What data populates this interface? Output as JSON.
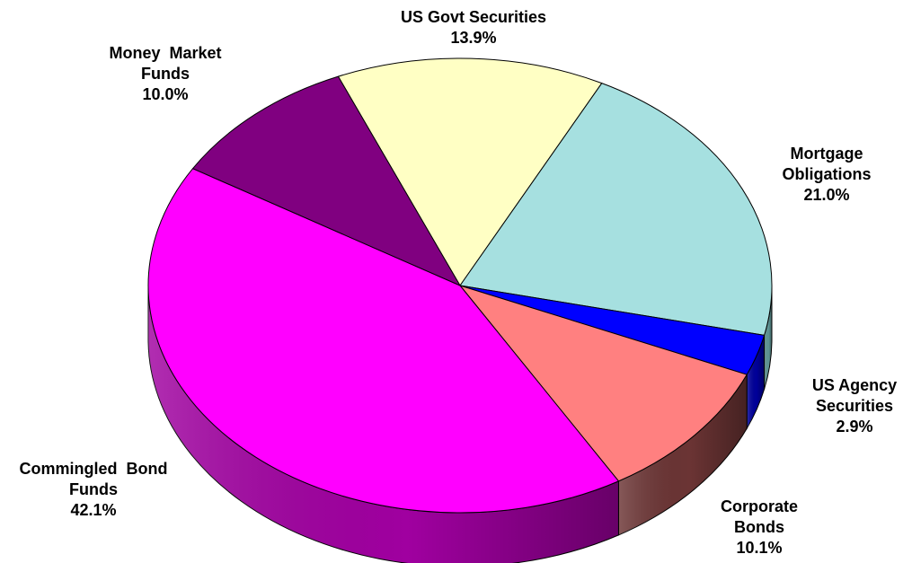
{
  "chart_data": {
    "type": "pie",
    "title": "",
    "slices": [
      {
        "label_lines": [
          "US Govt Securities"
        ],
        "pct_label": "13.9%",
        "value": 13.9,
        "top_color": "#ffffc4",
        "side_color": "#c8c89a"
      },
      {
        "label_lines": [
          "Mortgage",
          "Obligations"
        ],
        "pct_label": "21.0%",
        "value": 21.0,
        "top_color": "#a6e0e0",
        "side_color": "#5f9595"
      },
      {
        "label_lines": [
          "US Agency",
          "Securities"
        ],
        "pct_label": "2.9%",
        "value": 2.9,
        "top_color": "#0000ff",
        "side_color": "#00009a"
      },
      {
        "label_lines": [
          "Corporate",
          "Bonds"
        ],
        "pct_label": "10.1%",
        "value": 10.1,
        "top_color": "#ff8080",
        "side_color": "#6b3434"
      },
      {
        "label_lines": [
          "Commingled  Bond",
          "Funds"
        ],
        "pct_label": "42.1%",
        "value": 42.1,
        "top_color": "#ff00ff",
        "side_color": "#a000a0"
      },
      {
        "label_lines": [
          "Money  Market",
          "Funds"
        ],
        "pct_label": "10.0%",
        "value": 10.0,
        "top_color": "#800080",
        "side_color": "#4d004d"
      }
    ]
  }
}
